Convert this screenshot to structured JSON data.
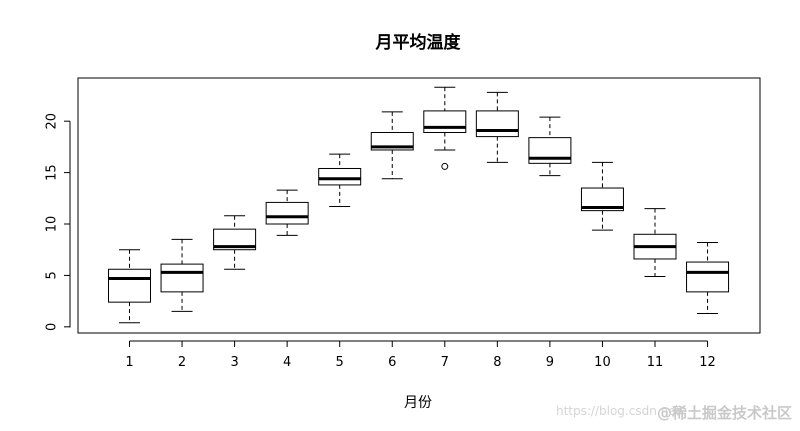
{
  "chart_data": {
    "type": "boxplot",
    "title": "月平均温度",
    "xlabel": "月份",
    "ylabel": "",
    "ylim": [
      -0.6,
      24.2
    ],
    "yticks": [
      0,
      5,
      10,
      15,
      20
    ],
    "categories": [
      "1",
      "2",
      "3",
      "4",
      "5",
      "6",
      "7",
      "8",
      "9",
      "10",
      "11",
      "12"
    ],
    "boxes": [
      {
        "low": 0.4,
        "q1": 2.4,
        "median": 4.7,
        "q3": 5.6,
        "high": 7.5,
        "outliers": []
      },
      {
        "low": 1.5,
        "q1": 3.4,
        "median": 5.3,
        "q3": 6.1,
        "high": 8.5,
        "outliers": []
      },
      {
        "low": 5.6,
        "q1": 7.5,
        "median": 7.8,
        "q3": 9.5,
        "high": 10.8,
        "outliers": []
      },
      {
        "low": 8.9,
        "q1": 10.0,
        "median": 10.7,
        "q3": 12.1,
        "high": 13.3,
        "outliers": []
      },
      {
        "low": 11.7,
        "q1": 13.8,
        "median": 14.4,
        "q3": 15.4,
        "high": 16.8,
        "outliers": []
      },
      {
        "low": 14.4,
        "q1": 17.2,
        "median": 17.5,
        "q3": 18.9,
        "high": 20.9,
        "outliers": []
      },
      {
        "low": 17.2,
        "q1": 18.9,
        "median": 19.4,
        "q3": 21.0,
        "high": 23.3,
        "outliers": [
          15.6
        ]
      },
      {
        "low": 16.0,
        "q1": 18.5,
        "median": 19.1,
        "q3": 21.0,
        "high": 22.8,
        "outliers": []
      },
      {
        "low": 14.7,
        "q1": 15.9,
        "median": 16.4,
        "q3": 18.4,
        "high": 20.4,
        "outliers": []
      },
      {
        "low": 9.4,
        "q1": 11.3,
        "median": 11.6,
        "q3": 13.5,
        "high": 16.0,
        "outliers": []
      },
      {
        "low": 4.9,
        "q1": 6.6,
        "median": 7.8,
        "q3": 9.0,
        "high": 11.5,
        "outliers": []
      },
      {
        "low": 1.3,
        "q1": 3.4,
        "median": 5.3,
        "q3": 6.3,
        "high": 8.2,
        "outliers": []
      }
    ],
    "grid": false,
    "legend": "none"
  },
  "watermark": {
    "url": "https://blog.csdn.net",
    "brand": "@稀土掘金技术社区"
  }
}
